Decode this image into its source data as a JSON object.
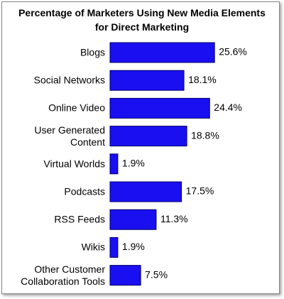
{
  "chart_data": {
    "type": "bar",
    "orientation": "horizontal",
    "title": "Percentage of Marketers Using New Media Elements for Direct Marketing",
    "categories": [
      "Blogs",
      "Social Networks",
      "Online Video",
      "User Generated Content",
      "Virtual Worlds",
      "Podcasts",
      "RSS Feeds",
      "Wikis",
      "Other Customer Collaboration Tools"
    ],
    "values": [
      25.6,
      18.1,
      24.4,
      18.8,
      1.9,
      17.5,
      11.3,
      1.9,
      7.5
    ],
    "value_labels": [
      "25.6%",
      "18.1%",
      "24.4%",
      "18.8%",
      "1.9%",
      "17.5%",
      "11.3%",
      "1.9%",
      "7.5%"
    ],
    "color": "#1a0ff0"
  }
}
